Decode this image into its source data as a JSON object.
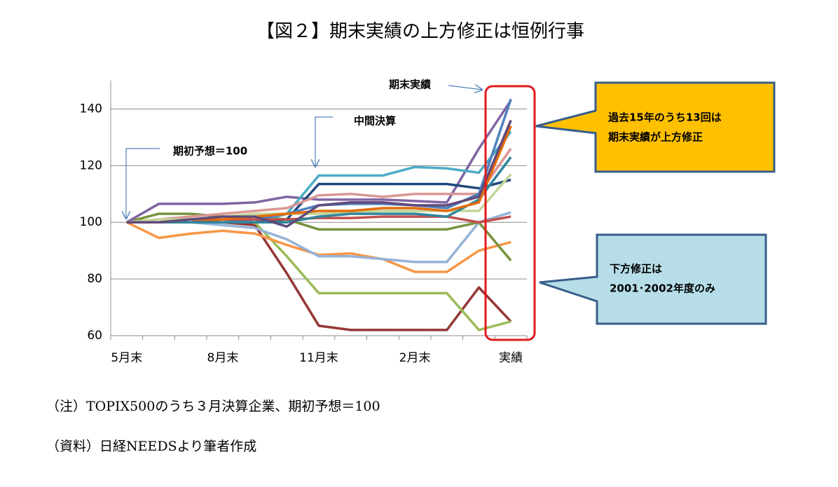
{
  "title": "【図２】期末実績の上方修正は恒例行事",
  "chart_data": {
    "type": "line",
    "categories": [
      "5月末",
      null,
      null,
      "8月末",
      null,
      null,
      "11月末",
      null,
      null,
      "2月末",
      null,
      null,
      "実績"
    ],
    "ylim": [
      60,
      150
    ],
    "yticks": [
      60,
      80,
      100,
      120,
      140
    ],
    "grid": true,
    "series": [
      {
        "color": "#953735",
        "values": [
          100,
          100,
          100,
          100,
          99,
          82,
          63.5,
          62,
          62,
          62,
          62,
          77,
          65
        ]
      },
      {
        "color": "#9bbb59",
        "values": [
          100,
          101,
          101,
          101,
          100,
          88,
          75,
          75,
          75,
          75,
          75,
          62,
          65
        ]
      },
      {
        "color": "#f79646",
        "values": [
          100,
          94.5,
          96,
          97,
          96,
          92,
          88.5,
          89,
          87,
          82.5,
          82.5,
          90,
          93
        ]
      },
      {
        "color": "#95b3d7",
        "values": [
          100,
          100,
          100,
          99,
          98,
          94,
          88,
          88,
          87,
          86,
          86,
          100,
          103.5
        ]
      },
      {
        "color": "#77933c",
        "values": [
          100,
          103,
          103,
          102,
          102,
          101,
          97.5,
          97.5,
          97.5,
          97.5,
          97.5,
          100,
          86.5
        ]
      },
      {
        "color": "#8064a2",
        "values": [
          100,
          106.5,
          106.5,
          106.5,
          107,
          109,
          108,
          108,
          108,
          107.5,
          107,
          126,
          143
        ]
      },
      {
        "color": "#4bacc6",
        "values": [
          100,
          100,
          100,
          100,
          100,
          103,
          116.5,
          116.5,
          116.5,
          119.5,
          119,
          117.5,
          132
        ]
      },
      {
        "color": "#1f497d",
        "values": [
          100,
          100,
          100,
          100,
          100,
          101,
          113.5,
          113.5,
          113.5,
          113.5,
          113.5,
          112,
          115
        ]
      },
      {
        "color": "#d99694",
        "values": [
          100,
          101,
          102,
          103,
          104,
          105,
          109.5,
          110,
          109,
          110,
          110,
          110,
          126
        ]
      },
      {
        "color": "#4f81bd",
        "values": [
          100,
          100,
          100,
          100,
          101,
          103,
          106,
          106.5,
          106.5,
          106,
          105,
          110,
          143.5
        ]
      },
      {
        "color": "#c0504d",
        "values": [
          100,
          100,
          100,
          101,
          101,
          101,
          101.5,
          101.5,
          102,
          102,
          102,
          100,
          102
        ]
      },
      {
        "color": "#c3d69b",
        "values": [
          100,
          101,
          101,
          102,
          103,
          103,
          103,
          103.5,
          104,
          104,
          104,
          104,
          117
        ]
      },
      {
        "color": "#31859c",
        "values": [
          100,
          100,
          100,
          100,
          100,
          100,
          102,
          103,
          103,
          103,
          102,
          108,
          123
        ]
      },
      {
        "color": "#e46c0a",
        "values": [
          100,
          100,
          101,
          101,
          102,
          103,
          104,
          104,
          105,
          105,
          104,
          107,
          134
        ]
      },
      {
        "color": "#604a7b",
        "values": [
          100,
          100,
          101,
          102,
          102,
          98.5,
          106,
          107,
          107,
          106,
          106,
          109,
          136
        ]
      }
    ],
    "annotations": [
      "期末実績",
      "中間決算",
      "期初予想＝100"
    ],
    "callouts": [
      [
        "過去15年のうち13回は",
        "期末実績が上方修正"
      ],
      [
        "下方修正は",
        "2001･2002年度のみ"
      ]
    ]
  },
  "notes": [
    "（注）TOPIX500のうち３月決算企業、期初予想＝100",
    "（資料）日経NEEDSより筆者作成"
  ]
}
